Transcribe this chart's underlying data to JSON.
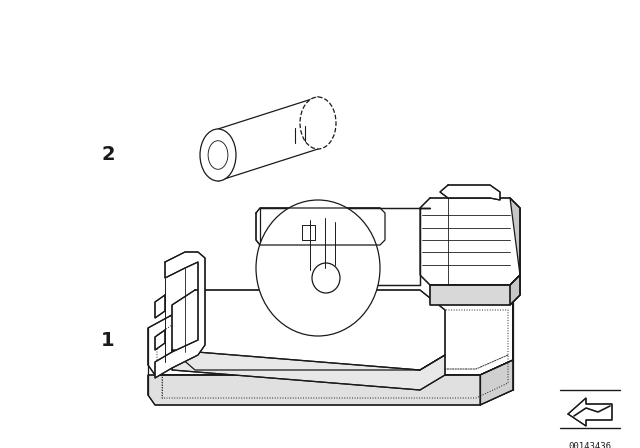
{
  "background_color": "#ffffff",
  "line_color": "#1a1a1a",
  "lw": 0.9,
  "label1": "1",
  "label2": "2",
  "part_number": "00143436",
  "fig_width": 6.4,
  "fig_height": 4.48,
  "dpi": 100
}
